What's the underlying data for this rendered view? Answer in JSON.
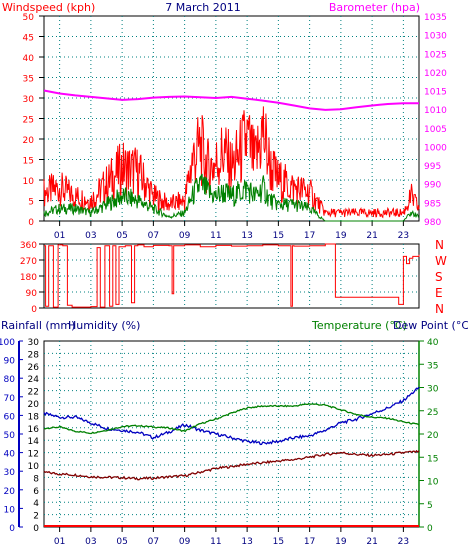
{
  "header": {
    "left_label": "Windspeed (kph)",
    "date": "7 March 2011",
    "right_label": "Barometer (hpa)"
  },
  "bottom_header": {
    "rain": "Rainfall (mm)",
    "humidity": "Humidity (%)",
    "temperature": "Temperature (°C)",
    "dewpoint": "Dew Point (°C)"
  },
  "colors": {
    "wind_gust": "#ff0000",
    "wind_avg": "#008000",
    "barometer": "#ff00ff",
    "direction": "#ff0000",
    "humidity": "#0000c0",
    "temperature": "#008000",
    "dewpoint": "#800000",
    "rainfall": "#ff0000",
    "grid": "#008080",
    "title_blue": "#000080"
  },
  "chart_data": [
    {
      "type": "line",
      "x_ticks": [
        "01",
        "03",
        "05",
        "07",
        "09",
        "11",
        "13",
        "15",
        "17",
        "19",
        "21",
        "23"
      ],
      "xlim": [
        0,
        24
      ],
      "left_axis": {
        "ylim": [
          0,
          50
        ],
        "ticks": [
          0,
          5,
          10,
          15,
          20,
          25,
          30,
          35,
          40,
          45,
          50
        ]
      },
      "right_axis": {
        "ylim": [
          980,
          1035
        ],
        "ticks": [
          980,
          985,
          990,
          995,
          1000,
          1005,
          1010,
          1015,
          1020,
          1025,
          1030,
          1035
        ]
      },
      "series": [
        {
          "name": "Barometer (hpa)",
          "axis": "right",
          "x": [
            0,
            1,
            2,
            3,
            4,
            5,
            6,
            7,
            8,
            9,
            10,
            11,
            12,
            13,
            14,
            15,
            16,
            17,
            18,
            19,
            20,
            21,
            22,
            23,
            24
          ],
          "values": [
            1015.0,
            1014.2,
            1013.7,
            1013.3,
            1012.9,
            1012.5,
            1012.7,
            1013.1,
            1013.3,
            1013.4,
            1013.2,
            1013.0,
            1013.3,
            1012.8,
            1012.3,
            1011.7,
            1011.0,
            1010.2,
            1009.8,
            1010.0,
            1010.5,
            1011.0,
            1011.4,
            1011.6,
            1011.6
          ]
        },
        {
          "name": "Windspeed (kph)",
          "role": "gust",
          "x": [
            0,
            1,
            2,
            3,
            4,
            5,
            6,
            7,
            8,
            9,
            9.5,
            10,
            10.5,
            11,
            11.5,
            12,
            12.5,
            13,
            13.5,
            14,
            14.5,
            15,
            16,
            17,
            18,
            19,
            20,
            21,
            22,
            23,
            23.5,
            24
          ],
          "values": [
            7,
            8,
            6,
            5,
            9,
            13,
            12,
            6,
            4,
            5,
            15,
            18,
            13,
            14,
            17,
            13,
            16,
            20,
            14,
            22,
            13,
            10,
            8,
            7,
            2,
            2,
            2,
            2,
            2,
            2,
            6,
            3
          ]
        },
        {
          "name": "Windspeed (kph)",
          "role": "average",
          "x": [
            0,
            1,
            2,
            3,
            4,
            5,
            6,
            7,
            8,
            9,
            9.5,
            10,
            10.5,
            11,
            11.5,
            12,
            12.5,
            13,
            13.5,
            14,
            14.5,
            15,
            16,
            17,
            18,
            19,
            20,
            21,
            22,
            23,
            23.5,
            24
          ],
          "values": [
            2,
            3,
            3,
            2,
            4,
            6,
            5,
            3,
            1,
            2,
            6,
            9,
            7,
            6,
            7,
            6,
            7,
            8,
            6,
            8,
            5,
            4,
            4,
            3,
            0,
            0,
            0,
            0,
            0,
            0,
            2,
            1
          ]
        }
      ]
    },
    {
      "type": "line",
      "x_ticks": [
        "01",
        "03",
        "05",
        "07",
        "09",
        "11",
        "13",
        "15",
        "17",
        "19",
        "21",
        "23"
      ],
      "xlim": [
        0,
        24
      ],
      "left_axis": {
        "ylim": [
          0,
          360
        ],
        "ticks": [
          0,
          90,
          180,
          270,
          360
        ]
      },
      "right_labels": [
        "N",
        "W",
        "S",
        "E",
        "N"
      ],
      "series": [
        {
          "name": "Wind direction",
          "steps": [
            [
              0.0,
              350
            ],
            [
              0.1,
              10
            ],
            [
              0.3,
              350
            ],
            [
              0.6,
              5
            ],
            [
              0.9,
              355
            ],
            [
              1.2,
              350
            ],
            [
              1.5,
              15
            ],
            [
              1.8,
              5
            ],
            [
              2.2,
              5
            ],
            [
              3.0,
              8
            ],
            [
              3.4,
              340
            ],
            [
              3.6,
              5
            ],
            [
              3.9,
              350
            ],
            [
              4.2,
              10
            ],
            [
              4.4,
              350
            ],
            [
              4.6,
              20
            ],
            [
              4.8,
              345
            ],
            [
              5.2,
              350
            ],
            [
              5.6,
              30
            ],
            [
              5.8,
              350
            ],
            [
              6.0,
              355
            ],
            [
              6.4,
              345
            ],
            [
              7.0,
              352
            ],
            [
              8.0,
              350
            ],
            [
              8.2,
              80
            ],
            [
              8.3,
              350
            ],
            [
              9.0,
              355
            ],
            [
              10.0,
              345
            ],
            [
              11.0,
              352
            ],
            [
              12.0,
              348
            ],
            [
              13.0,
              350
            ],
            [
              14.0,
              355
            ],
            [
              15.0,
              350
            ],
            [
              15.8,
              10
            ],
            [
              15.9,
              350
            ],
            [
              16.0,
              348
            ],
            [
              17.0,
              350
            ],
            [
              18.0,
              360
            ],
            [
              18.6,
              360
            ],
            [
              18.65,
              60
            ],
            [
              20.0,
              60
            ],
            [
              21.0,
              60
            ],
            [
              22.0,
              60
            ],
            [
              22.6,
              60
            ],
            [
              22.7,
              20
            ],
            [
              23.0,
              290
            ],
            [
              23.2,
              250
            ],
            [
              23.4,
              280
            ],
            [
              23.6,
              290
            ],
            [
              24.0,
              300
            ]
          ]
        }
      ]
    },
    {
      "type": "line",
      "x_ticks": [
        "01",
        "03",
        "05",
        "07",
        "09",
        "11",
        "13",
        "15",
        "17",
        "19",
        "21",
        "23"
      ],
      "xlim": [
        0,
        24
      ],
      "rain_axis": {
        "ylim": [
          0,
          30
        ],
        "ticks": [
          0,
          2,
          4,
          6,
          8,
          10,
          12,
          14,
          16,
          18,
          20,
          22,
          24,
          26,
          28,
          30
        ]
      },
      "humidity_axis": {
        "ylim": [
          0,
          100
        ],
        "ticks": [
          0,
          10,
          20,
          30,
          40,
          50,
          60,
          70,
          80,
          90,
          100
        ]
      },
      "temperature_axis": {
        "ylim": [
          0,
          40
        ],
        "ticks": [
          0,
          5,
          10,
          15,
          20,
          25,
          30,
          35,
          40
        ]
      },
      "series": [
        {
          "name": "Humidity (%)",
          "axis": "humidity",
          "x": [
            0,
            1,
            2,
            3,
            4,
            5,
            6,
            7,
            8,
            9,
            10,
            11,
            12,
            13,
            14,
            15,
            16,
            17,
            18,
            19,
            20,
            21,
            22,
            23,
            24
          ],
          "values": [
            61,
            59,
            59,
            56,
            53,
            52,
            51,
            48,
            51,
            55,
            52,
            50,
            48,
            46,
            45,
            46,
            48,
            49,
            52,
            56,
            58,
            61,
            64,
            68,
            75
          ]
        },
        {
          "name": "Temperature (°C)",
          "axis": "temperature",
          "x": [
            0,
            1,
            2,
            3,
            4,
            5,
            6,
            7,
            8,
            9,
            10,
            11,
            12,
            13,
            14,
            15,
            16,
            17,
            18,
            19,
            20,
            21,
            22,
            23,
            24
          ],
          "values": [
            21.2,
            21.5,
            20.6,
            20.2,
            20.8,
            21.6,
            21.8,
            21.5,
            21.3,
            20.6,
            22.2,
            23.2,
            24.5,
            25.6,
            26.0,
            26.0,
            26.0,
            26.5,
            26.2,
            25.2,
            24.2,
            23.6,
            23.4,
            22.6,
            22.0
          ]
        },
        {
          "name": "Dew Point (°C)",
          "axis": "temperature",
          "x": [
            0,
            1,
            2,
            3,
            4,
            5,
            6,
            7,
            8,
            9,
            10,
            11,
            12,
            13,
            14,
            15,
            16,
            17,
            18,
            19,
            20,
            21,
            22,
            23,
            24
          ],
          "values": [
            11.8,
            11.4,
            11.2,
            10.8,
            10.7,
            10.6,
            10.4,
            10.5,
            10.8,
            11.0,
            11.8,
            12.6,
            13.0,
            13.5,
            13.8,
            14.2,
            14.5,
            15.0,
            15.6,
            16.0,
            15.6,
            15.4,
            15.6,
            16.0,
            16.2
          ]
        },
        {
          "name": "Rainfall (mm)",
          "axis": "rain",
          "x": [
            0,
            24
          ],
          "values": [
            0,
            0
          ]
        }
      ]
    }
  ]
}
